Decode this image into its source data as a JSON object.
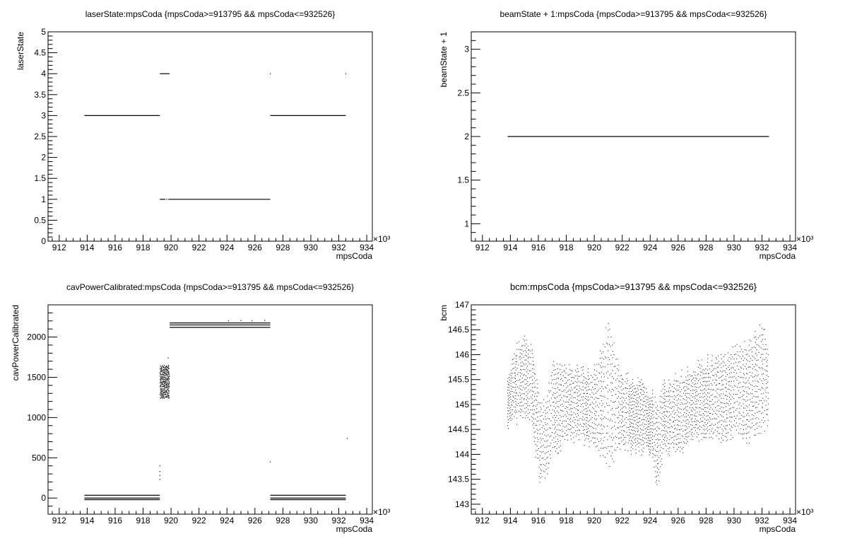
{
  "chart_data": [
    {
      "type": "scatter",
      "title": "laserState:mpsCoda {mpsCoda>=913795 && mpsCoda<=932526}",
      "xlabel": "mpsCoda",
      "ylabel": "laserState",
      "x_multiplier_label": "×10³",
      "xlim": [
        911.2,
        934.4
      ],
      "ylim": [
        0,
        5
      ],
      "xticks": [
        912,
        914,
        916,
        918,
        920,
        922,
        924,
        926,
        928,
        930,
        932,
        934
      ],
      "yticks": [
        0,
        0.5,
        1,
        1.5,
        2,
        2.5,
        3,
        3.5,
        4,
        4.5,
        5
      ],
      "ytick_labels": [
        "0",
        "0.5",
        "1",
        "1.5",
        "2",
        "2.5",
        "3",
        "3.5",
        "4",
        "4.5",
        "5"
      ],
      "segments": [
        {
          "x0": 913.8,
          "x1": 919.2,
          "y": 3
        },
        {
          "x0": 919.2,
          "x1": 919.6,
          "y": 1
        },
        {
          "x0": 919.8,
          "x1": 927.1,
          "y": 1
        },
        {
          "x0": 919.2,
          "x1": 919.9,
          "y": 4
        },
        {
          "x0": 927.1,
          "x1": 932.5,
          "y": 3
        }
      ],
      "points": [
        {
          "x": 919.7,
          "y": 1
        },
        {
          "x": 927.1,
          "y": 4
        },
        {
          "x": 932.5,
          "y": 4
        }
      ],
      "grid": false,
      "legend": "none"
    },
    {
      "type": "scatter",
      "title": "beamState + 1:mpsCoda {mpsCoda>=913795 && mpsCoda<=932526}",
      "xlabel": "mpsCoda",
      "ylabel": "beamState + 1",
      "x_multiplier_label": "×10³",
      "xlim": [
        911.2,
        934.4
      ],
      "ylim": [
        0.8,
        3.2
      ],
      "xticks": [
        912,
        914,
        916,
        918,
        920,
        922,
        924,
        926,
        928,
        930,
        932,
        934
      ],
      "yticks": [
        1,
        1.5,
        2,
        2.5,
        3
      ],
      "ytick_labels": [
        "1",
        "1.5",
        "2",
        "2.5",
        "3"
      ],
      "segments": [
        {
          "x0": 913.8,
          "x1": 932.5,
          "y": 2
        }
      ],
      "points": [],
      "grid": false,
      "legend": "none"
    },
    {
      "type": "scatter",
      "title": "cavPowerCalibrated:mpsCoda {mpsCoda>=913795 && mpsCoda<=932526}",
      "xlabel": "mpsCoda",
      "ylabel": "cavPowerCalibrated",
      "x_multiplier_label": "×10³",
      "xlim": [
        911.2,
        934.4
      ],
      "ylim": [
        -200,
        2400
      ],
      "xticks": [
        912,
        914,
        916,
        918,
        920,
        922,
        924,
        926,
        928,
        930,
        932,
        934
      ],
      "yticks": [
        0,
        500,
        1000,
        1500,
        2000
      ],
      "ytick_labels": [
        "0",
        "500",
        "1000",
        "1500",
        "2000"
      ],
      "segments": [
        {
          "x0": 913.8,
          "x1": 919.2,
          "y": 35
        },
        {
          "x0": 913.8,
          "x1": 919.2,
          "y": 0
        },
        {
          "x0": 913.8,
          "x1": 919.2,
          "y": -20
        },
        {
          "x0": 919.9,
          "x1": 927.1,
          "y": 2175
        },
        {
          "x0": 919.9,
          "x1": 927.1,
          "y": 2150
        },
        {
          "x0": 919.9,
          "x1": 927.1,
          "y": 2120
        },
        {
          "x0": 927.1,
          "x1": 932.5,
          "y": 35
        },
        {
          "x0": 927.1,
          "x1": 932.5,
          "y": 0
        },
        {
          "x0": 927.1,
          "x1": 932.5,
          "y": -20
        }
      ],
      "bands": [
        {
          "x0": 919.2,
          "x1": 919.85,
          "y0": 1250,
          "y1": 1660
        }
      ],
      "points": [
        {
          "x": 919.2,
          "y": 400
        },
        {
          "x": 919.2,
          "y": 330
        },
        {
          "x": 919.2,
          "y": 280
        },
        {
          "x": 919.2,
          "y": 230
        },
        {
          "x": 919.8,
          "y": 1740
        },
        {
          "x": 924.1,
          "y": 2200
        },
        {
          "x": 925.0,
          "y": 2205
        },
        {
          "x": 925.8,
          "y": 2200
        },
        {
          "x": 926.7,
          "y": 2205
        },
        {
          "x": 927.1,
          "y": 450
        },
        {
          "x": 932.6,
          "y": 740
        }
      ],
      "grid": false,
      "legend": "none"
    },
    {
      "type": "scatter",
      "title": "bcm:mpsCoda {mpsCoda>=913795 && mpsCoda<=932526}",
      "xlabel": "mpsCoda",
      "ylabel": "bcm",
      "x_multiplier_label": "×10³",
      "xlim": [
        911.2,
        934.4
      ],
      "ylim": [
        142.8,
        147
      ],
      "xticks": [
        912,
        914,
        916,
        918,
        920,
        922,
        924,
        926,
        928,
        930,
        932,
        934
      ],
      "yticks": [
        143,
        143.5,
        144,
        144.5,
        145,
        145.5,
        146,
        146.5,
        147
      ],
      "ytick_labels": [
        "143",
        "143.5",
        "144",
        "144.5",
        "145",
        "145.5",
        "146",
        "146.5",
        "147"
      ],
      "noise_x": [
        913.8,
        932.5
      ],
      "envelope": [
        {
          "x": 913.8,
          "lo": 144.5,
          "hi": 145.7
        },
        {
          "x": 914.5,
          "lo": 144.6,
          "hi": 146.3
        },
        {
          "x": 915.0,
          "lo": 144.6,
          "hi": 146.5
        },
        {
          "x": 915.5,
          "lo": 144.5,
          "hi": 146.3
        },
        {
          "x": 916.0,
          "lo": 143.4,
          "hi": 145.3
        },
        {
          "x": 916.5,
          "lo": 143.4,
          "hi": 145.0
        },
        {
          "x": 917.0,
          "lo": 143.9,
          "hi": 145.9
        },
        {
          "x": 918.0,
          "lo": 144.2,
          "hi": 145.8
        },
        {
          "x": 919.0,
          "lo": 144.2,
          "hi": 145.8
        },
        {
          "x": 920.0,
          "lo": 144.1,
          "hi": 145.8
        },
        {
          "x": 921.0,
          "lo": 143.7,
          "hi": 146.7
        },
        {
          "x": 922.0,
          "lo": 144.0,
          "hi": 145.7
        },
        {
          "x": 923.0,
          "lo": 144.0,
          "hi": 145.6
        },
        {
          "x": 924.0,
          "lo": 143.9,
          "hi": 145.4
        },
        {
          "x": 924.5,
          "lo": 143.1,
          "hi": 145.1
        },
        {
          "x": 925.0,
          "lo": 144.0,
          "hi": 145.5
        },
        {
          "x": 926.0,
          "lo": 143.9,
          "hi": 145.7
        },
        {
          "x": 927.0,
          "lo": 144.2,
          "hi": 145.8
        },
        {
          "x": 928.0,
          "lo": 144.3,
          "hi": 146.0
        },
        {
          "x": 929.0,
          "lo": 144.2,
          "hi": 146.0
        },
        {
          "x": 930.0,
          "lo": 144.3,
          "hi": 146.2
        },
        {
          "x": 931.0,
          "lo": 144.2,
          "hi": 146.3
        },
        {
          "x": 932.0,
          "lo": 144.4,
          "hi": 146.7
        },
        {
          "x": 932.5,
          "lo": 144.6,
          "hi": 146.3
        }
      ],
      "grid": false,
      "legend": "none"
    }
  ]
}
